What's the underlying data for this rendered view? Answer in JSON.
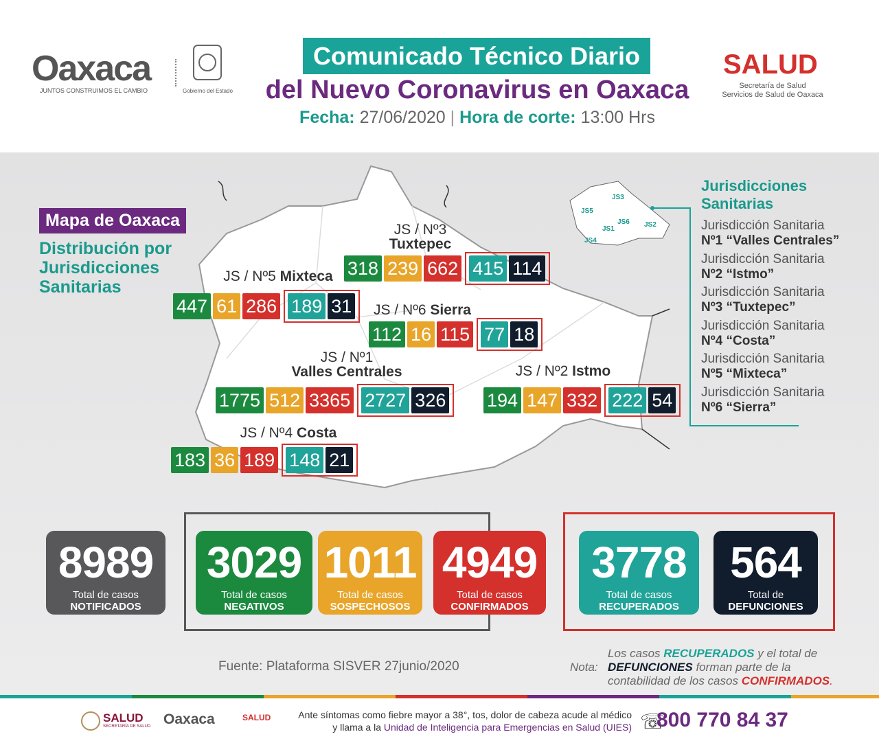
{
  "header": {
    "logo": "Oaxaca",
    "logo_tagline": "JUNTOS CONSTRUIMOS EL CAMBIO",
    "government": "Gobierno del Estado",
    "title_line1": "Comunicado Técnico Diario",
    "title_line2": "del Nuevo Coronavirus en Oaxaca",
    "date_label": "Fecha:",
    "date": "27/06/2020",
    "cutoff_label": "Hora de corte:",
    "cutoff": "13:00 Hrs",
    "salud": "SALUD",
    "salud_line1": "Secretaría de Salud",
    "salud_line2": "Servicios de Salud de Oaxaca"
  },
  "map": {
    "badge": "Mapa de Oaxaca",
    "subtitle": "Distribución por Jurisdicciones Sanitarias",
    "jurisdictions": [
      {
        "label": "JS / Nº3",
        "name": "Tuxtepec",
        "values": [
          318,
          239,
          662,
          415,
          114
        ]
      },
      {
        "label": "JS / Nº5",
        "name": "Mixteca",
        "values": [
          447,
          61,
          286,
          189,
          31
        ]
      },
      {
        "label": "JS / Nº6",
        "name": "Sierra",
        "values": [
          112,
          16,
          115,
          77,
          18
        ]
      },
      {
        "label": "JS / Nº1",
        "name": "Valles Centrales",
        "values": [
          1775,
          512,
          3365,
          2727,
          326
        ]
      },
      {
        "label": "JS / Nº2",
        "name": "Istmo",
        "values": [
          194,
          147,
          332,
          222,
          54
        ]
      },
      {
        "label": "JS / Nº4",
        "name": "Costa",
        "values": [
          183,
          36,
          189,
          148,
          21
        ]
      }
    ]
  },
  "legend": {
    "title": "Jurisdicciones Sanitarias",
    "inset_labels": [
      "JS1",
      "JS2",
      "JS3",
      "JS4",
      "JS5",
      "JS6"
    ],
    "items": [
      {
        "line1": "Jurisdicción Sanitaria",
        "line2": "Nº1 “Valles Centrales”"
      },
      {
        "line1": "Jurisdicción Sanitaria",
        "line2": "Nº2 “Istmo”"
      },
      {
        "line1": "Jurisdicción Sanitaria",
        "line2": "Nº3 “Tuxtepec”"
      },
      {
        "line1": "Jurisdicción Sanitaria",
        "line2": "Nº4 “Costa”"
      },
      {
        "line1": "Jurisdicción Sanitaria",
        "line2": "Nº5 “Mixteca”"
      },
      {
        "line1": "Jurisdicción Sanitaria",
        "line2": "Nº6 “Sierra”"
      }
    ]
  },
  "totals": [
    {
      "value": 8989,
      "line1": "Total de casos",
      "line2": "NOTIFICADOS"
    },
    {
      "value": 3029,
      "line1": "Total de casos",
      "line2": "NEGATIVOS"
    },
    {
      "value": 1011,
      "line1": "Total de casos",
      "line2": "SOSPECHOSOS"
    },
    {
      "value": 4949,
      "line1": "Total de casos",
      "line2": "CONFIRMADOS"
    },
    {
      "value": 3778,
      "line1": "Total de casos",
      "line2": "RECUPERADOS"
    },
    {
      "value": 564,
      "line1": "Total de",
      "line2": "DEFUNCIONES"
    }
  ],
  "source": "Fuente: Plataforma SISVER 27junio/2020",
  "note": {
    "label": "Nota:",
    "parts": [
      "Los casos ",
      "RECUPERADOS",
      " y el total de ",
      "DEFUNCIONES",
      " forman parte de la contabilidad de los casos ",
      "CONFIRMADOS",
      "."
    ]
  },
  "footer": {
    "salud": "SALUD",
    "salud_sub": "SECRETARÍA DE SALUD",
    "logo": "Oaxaca",
    "salud2": "SALUD",
    "message_line1": "Ante síntomas como fiebre mayor a 38°, tos, dolor de cabeza acude al médico",
    "message_line2": "y llama a la ",
    "message_link": "Unidad de Inteligencia para Emergencias en Salud (UIES)",
    "phone": "800 770 84 37"
  }
}
